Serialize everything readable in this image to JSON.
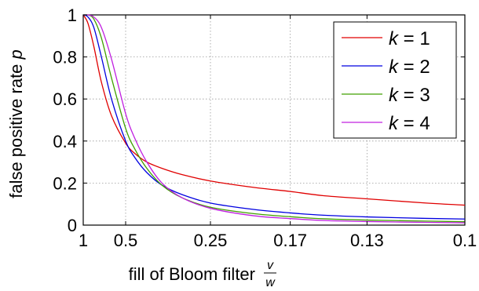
{
  "chart_data": {
    "type": "line",
    "title": "",
    "xlabel": "fill of Bloom filter",
    "xlabel_fraction": {
      "numerator": "v",
      "denominator": "w"
    },
    "ylabel": "false positive rate",
    "ylabel_symbol": "p",
    "x_scale": "reciprocal",
    "xlim": [
      1,
      0.1
    ],
    "ylim": [
      0,
      1
    ],
    "x_ticks": [
      1,
      0.5,
      0.25,
      0.17,
      0.13,
      0.1
    ],
    "x_tick_labels": [
      "1",
      "0.5",
      "0.25",
      "0.17",
      "0.13",
      "0.1"
    ],
    "y_ticks": [
      0,
      0.2,
      0.4,
      0.6,
      0.8,
      1
    ],
    "y_tick_labels": [
      "0",
      "0.2",
      "0.4",
      "0.6",
      "0.8",
      "1"
    ],
    "grid": true,
    "legend_position": "top-right",
    "x": [
      1,
      0.9,
      0.8,
      0.7,
      0.6,
      0.5,
      0.45,
      0.4,
      0.35,
      0.3,
      0.25,
      0.2,
      0.17,
      0.15,
      0.13,
      0.11,
      0.1
    ],
    "series": [
      {
        "name": "k = 1",
        "legend_symbol": "k",
        "legend_value": "1",
        "color": "#e00000",
        "values": [
          1.0,
          0.96,
          0.85,
          0.68,
          0.52,
          0.39,
          0.34,
          0.3,
          0.27,
          0.24,
          0.21,
          0.18,
          0.16,
          0.14,
          0.125,
          0.105,
          0.095
        ]
      },
      {
        "name": "k = 2",
        "legend_symbol": "k",
        "legend_value": "2",
        "color": "#0000e0",
        "values": [
          1.0,
          0.99,
          0.94,
          0.8,
          0.6,
          0.4,
          0.32,
          0.25,
          0.19,
          0.145,
          0.105,
          0.075,
          0.058,
          0.047,
          0.039,
          0.032,
          0.029
        ]
      },
      {
        "name": "k = 3",
        "legend_symbol": "k",
        "legend_value": "3",
        "color": "#40a000",
        "values": [
          1.0,
          1.0,
          0.98,
          0.89,
          0.7,
          0.46,
          0.36,
          0.27,
          0.19,
          0.13,
          0.085,
          0.055,
          0.04,
          0.03,
          0.024,
          0.019,
          0.016
        ]
      },
      {
        "name": "k = 4",
        "legend_symbol": "k",
        "legend_value": "4",
        "color": "#c020e0",
        "values": [
          1.0,
          1.0,
          0.99,
          0.94,
          0.79,
          0.53,
          0.41,
          0.3,
          0.2,
          0.13,
          0.08,
          0.045,
          0.031,
          0.022,
          0.017,
          0.013,
          0.011
        ]
      }
    ]
  }
}
